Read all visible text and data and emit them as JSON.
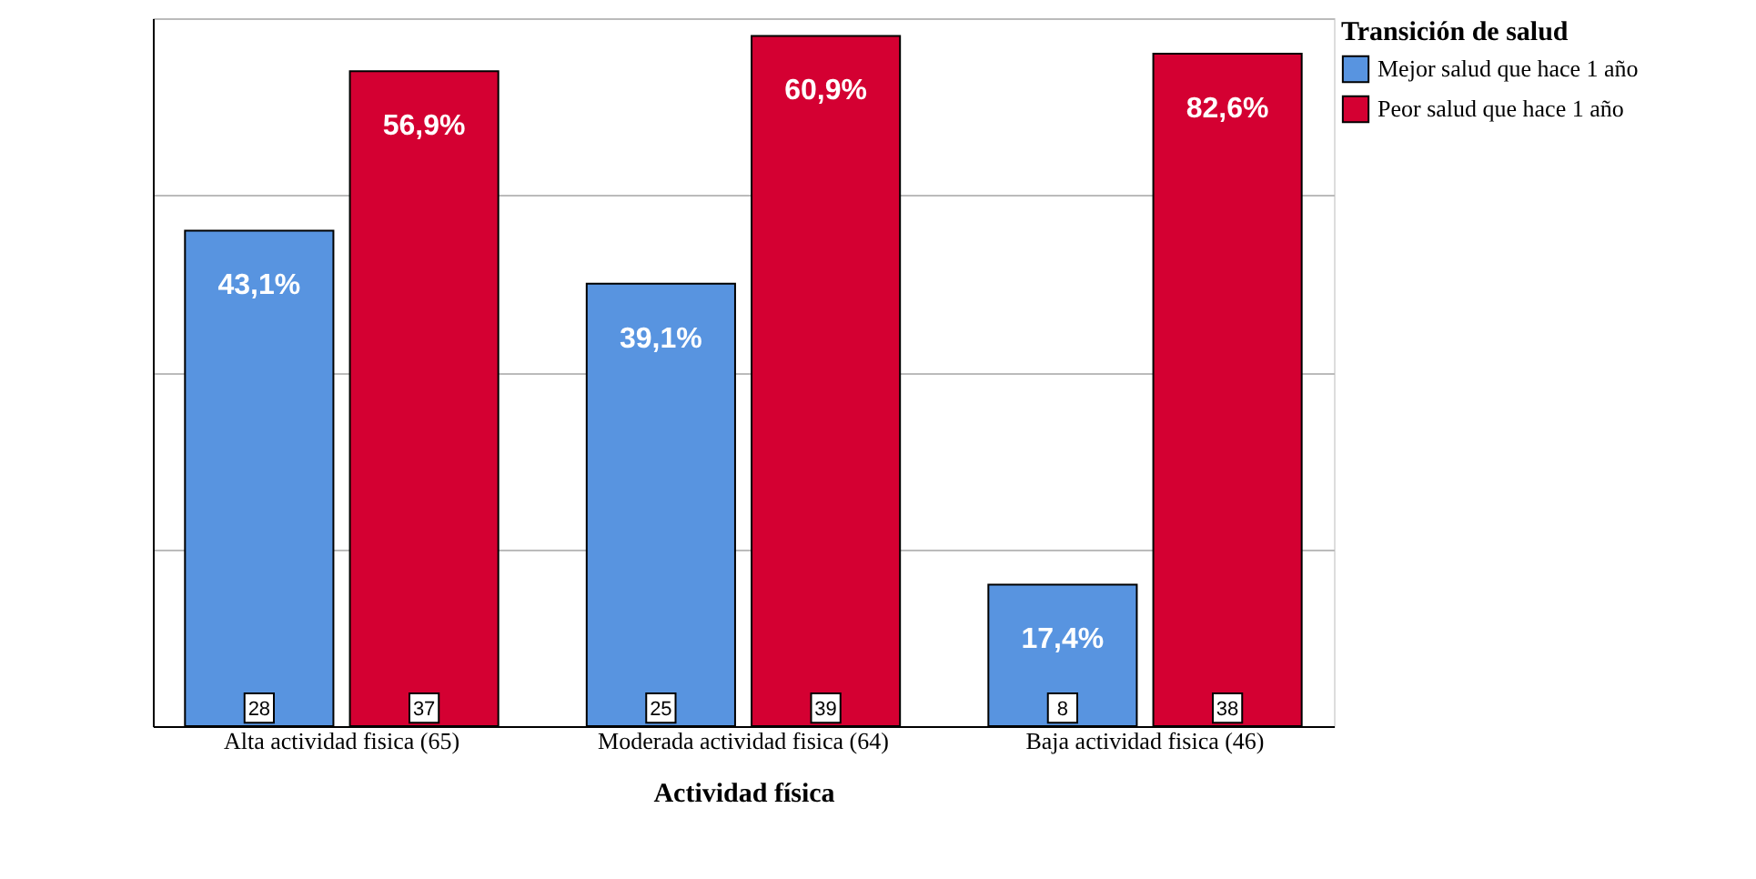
{
  "chart_data": {
    "type": "bar",
    "xlabel": "Actividad física",
    "legend_title": "Transición de salud",
    "categories": [
      "Alta actividad fisica (65)",
      "Moderada actividad fisica (64)",
      "Baja actividad fisica (46)"
    ],
    "series": [
      {
        "name": "Mejor salud que hace 1 año",
        "color": "#5894e0",
        "values": [
          28,
          25,
          8
        ]
      },
      {
        "name": "Peor salud que hace 1 año",
        "color": "#d40032",
        "values": [
          37,
          39,
          38
        ]
      }
    ],
    "annotations": [
      {
        "text": "43,1%",
        "x": "Alta actividad fisica (65)",
        "y": 28
      },
      {
        "text": "39,1%",
        "x": "Moderada actividad fisica (64)",
        "y": 25
      },
      {
        "text": "17,4%",
        "x": "Baja actividad fisica (46)",
        "y": 8
      },
      {
        "text": "56,9%",
        "x": "Alta actividad fisica (65)",
        "y": 37
      },
      {
        "text": "60,9%",
        "x": "Moderada actividad fisica (64)",
        "y": 39
      },
      {
        "text": "82,6%",
        "x": "Baja actividad fisica (46)",
        "y": 38
      }
    ],
    "data_labels": true,
    "grid": "y",
    "legend": "top right",
    "tick_labels": "x"
  }
}
